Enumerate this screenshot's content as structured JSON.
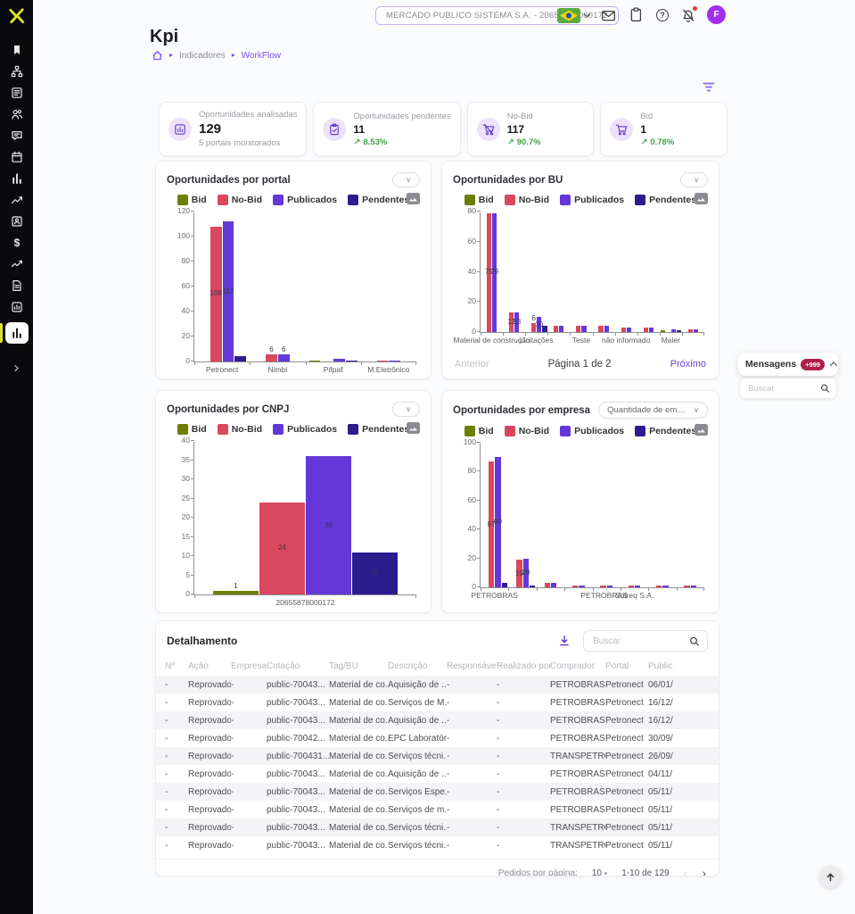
{
  "colors": {
    "accent": "#7c4dff",
    "brand": "#d9e32b",
    "positive": "#43a047",
    "badge": "#b02045",
    "avatar": "#a32eea"
  },
  "sidebar": {
    "items": [
      {
        "icon": "bookmark"
      },
      {
        "icon": "org-chart"
      },
      {
        "icon": "form"
      },
      {
        "icon": "users"
      },
      {
        "icon": "chat"
      },
      {
        "icon": "calendar"
      },
      {
        "icon": "column-chart"
      },
      {
        "icon": "trend-line"
      },
      {
        "icon": "id-badge"
      },
      {
        "icon": "dollar"
      },
      {
        "icon": "trend-line-2"
      },
      {
        "icon": "document"
      },
      {
        "icon": "image-chart"
      },
      {
        "icon": "column-chart",
        "active": true
      }
    ]
  },
  "topbar": {
    "company": "MERCADO PUBLICO SISTEMA S.A. - 20655878000172",
    "avatar_initial": "F"
  },
  "page": {
    "title": "Kpi",
    "breadcrumb": [
      "Indicadores",
      "WorkFlow"
    ]
  },
  "kpis": [
    {
      "icon": "bar-chart",
      "label": "Oportunidades analisadas",
      "value": "129",
      "sub": "5 portais monitorados"
    },
    {
      "icon": "clipboard-check",
      "label": "Oportunidades pendentes",
      "value": "11",
      "trend": "8.53%"
    },
    {
      "icon": "cart-off",
      "label": "No-Bid",
      "value": "117",
      "trend": "90.7%"
    },
    {
      "icon": "cart",
      "label": "Bid",
      "value": "1",
      "trend": "0.78%"
    }
  ],
  "chart_data": [
    {
      "type": "bar",
      "title": "Oportunidades por portal",
      "categories": [
        "Petronect",
        "Nimbi",
        "Pifpaf",
        "M.Eletrônico"
      ],
      "series": [
        {
          "name": "Bid",
          "color": "#6e7f00",
          "values": [
            0,
            0,
            1,
            0
          ]
        },
        {
          "name": "No-Bid",
          "color": "#d9485f",
          "values": [
            108,
            6,
            0,
            1
          ]
        },
        {
          "name": "Publicados",
          "color": "#6438d8",
          "values": [
            112,
            6,
            2,
            1
          ]
        },
        {
          "name": "Pendentes",
          "color": "#2c1c8e",
          "values": [
            4,
            0,
            1,
            0
          ]
        }
      ],
      "ylim": [
        0,
        120
      ],
      "ystep": 20,
      "grid": false,
      "legend_position": "top"
    },
    {
      "type": "bar",
      "title": "Oportunidades por BU",
      "categories": [
        "Material de construção",
        "",
        "Licitações",
        "",
        "Teste",
        "",
        "não informado",
        "",
        "Maier",
        ""
      ],
      "series": [
        {
          "name": "Bid",
          "color": "#6e7f00",
          "values": [
            0,
            0,
            0,
            0,
            0,
            0,
            0,
            0,
            1,
            0
          ]
        },
        {
          "name": "No-Bid",
          "color": "#d9485f",
          "values": [
            79,
            13,
            6,
            4,
            4,
            4,
            3,
            3,
            0,
            2
          ]
        },
        {
          "name": "Publicados",
          "color": "#6438d8",
          "values": [
            79,
            13,
            10,
            4,
            4,
            4,
            3,
            3,
            2,
            2
          ]
        },
        {
          "name": "Pendentes",
          "color": "#2c1c8e",
          "values": [
            0,
            0,
            4,
            0,
            0,
            0,
            0,
            0,
            1,
            0
          ]
        }
      ],
      "ylim": [
        0,
        80
      ],
      "ystep": 20,
      "grid": false,
      "legend_position": "top",
      "pagination": {
        "prev": "Anterior",
        "label": "Página 1 de 2",
        "next": "Próximo"
      }
    },
    {
      "type": "bar",
      "title": "Oportunidades por CNPJ",
      "categories": [
        "20655878000172"
      ],
      "series": [
        {
          "name": "Bid",
          "color": "#6e7f00",
          "values": [
            1
          ]
        },
        {
          "name": "No-Bid",
          "color": "#d9485f",
          "values": [
            24
          ]
        },
        {
          "name": "Publicados",
          "color": "#6438d8",
          "values": [
            36
          ]
        },
        {
          "name": "Pendentes",
          "color": "#2c1c8e",
          "values": [
            11
          ]
        }
      ],
      "ylim": [
        0,
        40
      ],
      "ystep": 5,
      "grid": false,
      "legend_position": "top"
    },
    {
      "type": "bar",
      "title": "Oportunidades por empresa",
      "select_label": "Quantidade de empresas",
      "categories": [
        "PETROBRAS",
        "",
        "",
        "",
        "PETROBRAS -",
        "Sotreq S.A.",
        "",
        ""
      ],
      "series": [
        {
          "name": "Bid",
          "color": "#6e7f00",
          "values": [
            0,
            0,
            0,
            0,
            0,
            0,
            0,
            0
          ]
        },
        {
          "name": "No-Bid",
          "color": "#d9485f",
          "values": [
            87,
            19,
            3,
            1,
            1,
            1,
            1,
            1
          ]
        },
        {
          "name": "Publicados",
          "color": "#6438d8",
          "values": [
            90,
            20,
            3,
            1,
            1,
            1,
            1,
            1
          ]
        },
        {
          "name": "Pendentes",
          "color": "#2c1c8e",
          "values": [
            3,
            1,
            0,
            0,
            0,
            0,
            0,
            0
          ]
        }
      ],
      "ylim": [
        0,
        100
      ],
      "ystep": 20,
      "grid": false,
      "legend_position": "top"
    }
  ],
  "messages_panel": {
    "title": "Mensagens",
    "badge": "+999",
    "search_placeholder": "Buscar"
  },
  "table": {
    "title": "Detalhamento",
    "search_placeholder": "Buscar",
    "columns": [
      "Nº",
      "Ação",
      "Empresa",
      "Cotação",
      "Tag/BU",
      "Descrição",
      "Responsável",
      "Realizado por",
      "Comprador",
      "Portal",
      "Public"
    ],
    "rows": [
      [
        "-",
        "Reprovado",
        "-",
        "public-70043...",
        "Material de co...",
        "Aquisição de ...",
        "-",
        "-",
        "PETROBRAS",
        "Petronect",
        "06/01/"
      ],
      [
        "-",
        "Reprovado",
        "-",
        "public-70043...",
        "Material de co...",
        "Serviços de M...",
        "-",
        "-",
        "PETROBRAS",
        "Petronect",
        "16/12/"
      ],
      [
        "-",
        "Reprovado",
        "-",
        "public-70043...",
        "Material de co...",
        "Aquisição de ...",
        "-",
        "-",
        "PETROBRAS",
        "Petronect",
        "16/12/"
      ],
      [
        "-",
        "Reprovado",
        "-",
        "public-70042...",
        "Material de co...",
        "EPC Laboratór...",
        "-",
        "-",
        "PETROBRAS",
        "Petronect",
        "30/09/"
      ],
      [
        "-",
        "Reprovado",
        "-",
        "public-700431...",
        "Material de co...",
        "Serviços técni...",
        "-",
        "-",
        "TRANSPETRO",
        "Petronect",
        "26/09/"
      ],
      [
        "-",
        "Reprovado",
        "-",
        "public-70043...",
        "Material de co...",
        "Aquisição de ...",
        "-",
        "-",
        "PETROBRAS",
        "Petronect",
        "04/11/"
      ],
      [
        "-",
        "Reprovado",
        "-",
        "public-70043...",
        "Material de co...",
        "Serviços Espe...",
        "-",
        "-",
        "PETROBRAS",
        "Petronect",
        "05/11/"
      ],
      [
        "-",
        "Reprovado",
        "-",
        "public-70043...",
        "Material de co...",
        "Serviços de m...",
        "-",
        "-",
        "PETROBRAS",
        "Petronect",
        "05/11/"
      ],
      [
        "-",
        "Reprovado",
        "-",
        "public-70043...",
        "Material de co...",
        "Serviços técni...",
        "-",
        "-",
        "TRANSPETRO",
        "Petronect",
        "05/11/"
      ],
      [
        "-",
        "Reprovado",
        "-",
        "public-70043...",
        "Material de co...",
        "Serviços técni...",
        "-",
        "-",
        "TRANSPETRO",
        "Petronect",
        "05/11/"
      ]
    ],
    "footer": {
      "per_page_label": "Pedidos por página:",
      "per_page": "10",
      "range": "1-10 de 129"
    }
  }
}
